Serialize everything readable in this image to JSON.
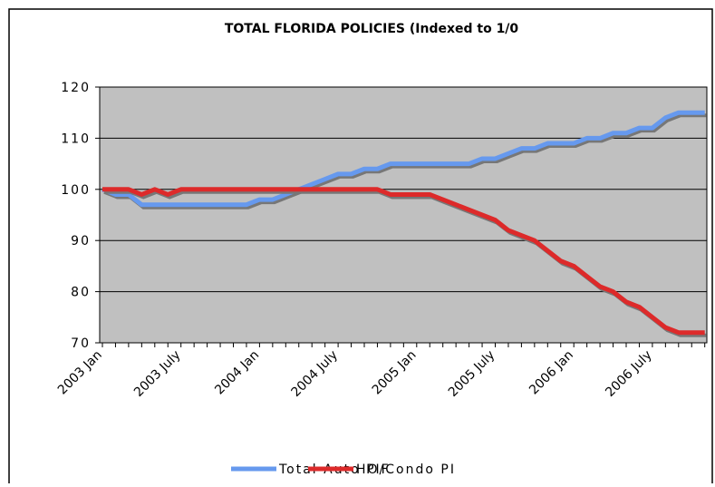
{
  "chart_data": {
    "type": "line",
    "title": "TOTAL FLORIDA POLICIES (Indexed to 1/0",
    "categories": [
      "2003 Jan",
      null,
      null,
      null,
      null,
      null,
      "2003 July",
      null,
      null,
      null,
      null,
      null,
      "2004 Jan",
      null,
      null,
      null,
      null,
      null,
      "2004 July",
      null,
      null,
      null,
      null,
      null,
      "2005 Jan",
      null,
      null,
      null,
      null,
      null,
      "2005 July",
      null,
      null,
      null,
      null,
      null,
      "2006 Jan",
      null,
      null,
      null,
      null,
      null,
      "2006 July",
      null,
      null,
      null,
      null
    ],
    "series": [
      {
        "name": "Total Auto PIF",
        "color": "#6699ee",
        "values": [
          100,
          99,
          99,
          97,
          97,
          97,
          97,
          97,
          97,
          97,
          97,
          97,
          98,
          98,
          99,
          100,
          101,
          102,
          103,
          103,
          104,
          104,
          105,
          105,
          105,
          105,
          105,
          105,
          105,
          106,
          106,
          107,
          108,
          108,
          109,
          109,
          109,
          110,
          110,
          111,
          111,
          112,
          112,
          114,
          115,
          115,
          115
        ]
      },
      {
        "name": "HO/Condo PI",
        "color": "#dd2a2a",
        "values": [
          100,
          100,
          100,
          99,
          100,
          99,
          100,
          100,
          100,
          100,
          100,
          100,
          100,
          100,
          100,
          100,
          100,
          100,
          100,
          100,
          100,
          100,
          99,
          99,
          99,
          99,
          98,
          97,
          96,
          95,
          94,
          92,
          91,
          90,
          88,
          86,
          85,
          83,
          81,
          80,
          78,
          77,
          75,
          73,
          72,
          72,
          72
        ]
      }
    ],
    "ylim": [
      70,
      120
    ],
    "yticks": [
      70,
      80,
      90,
      100,
      110,
      120
    ],
    "grid": true
  }
}
